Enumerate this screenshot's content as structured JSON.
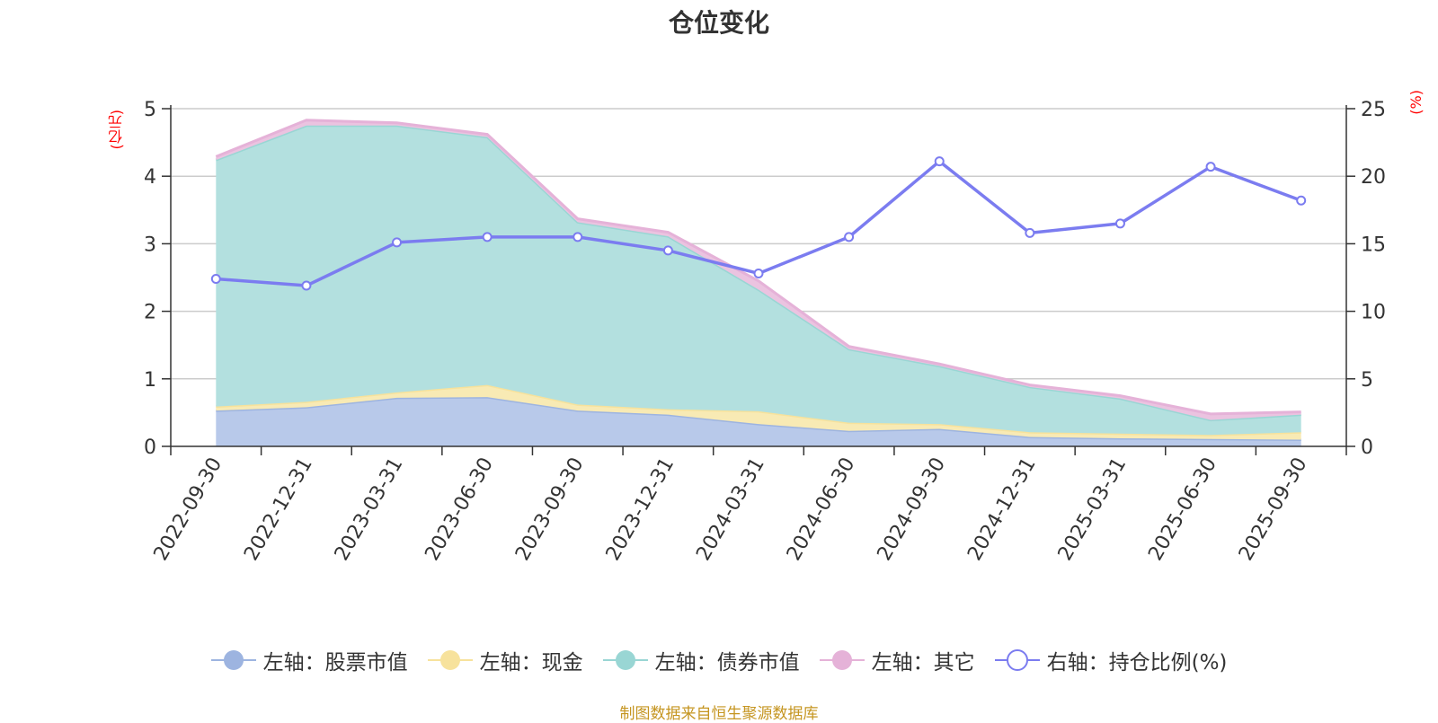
{
  "chart_data": {
    "type": "area",
    "title": "仓位变化",
    "y_left_unit": "(亿元)",
    "y_right_unit": "(%)",
    "y_left_ylim": [
      0,
      5
    ],
    "y_left_ticks": [
      "0",
      "1",
      "2",
      "3",
      "4",
      "5"
    ],
    "y_right_ylim": [
      0,
      25
    ],
    "y_right_ticks": [
      "0",
      "5",
      "10",
      "15",
      "20",
      "25"
    ],
    "categories": [
      "2022-09-30",
      "2022-12-31",
      "2023-03-31",
      "2023-06-30",
      "2023-09-30",
      "2023-12-31",
      "2024-03-31",
      "2024-06-30",
      "2024-09-30",
      "2024-12-31",
      "2025-03-31",
      "2025-06-30",
      "2025-09-30"
    ],
    "series": [
      {
        "name": "左轴：股票市值",
        "axis": "left",
        "kind": "stacked-area",
        "color": "#9db4e0",
        "fill": "#b8c9ea",
        "values": [
          0.53,
          0.58,
          0.72,
          0.73,
          0.53,
          0.47,
          0.33,
          0.23,
          0.26,
          0.14,
          0.12,
          0.11,
          0.1
        ]
      },
      {
        "name": "左轴：现金",
        "axis": "left",
        "kind": "stacked-area",
        "color": "#f7e29c",
        "fill": "#f8eab4",
        "values": [
          0.06,
          0.08,
          0.08,
          0.18,
          0.09,
          0.08,
          0.19,
          0.12,
          0.07,
          0.07,
          0.07,
          0.06,
          0.11
        ]
      },
      {
        "name": "左轴：债券市值",
        "axis": "left",
        "kind": "stacked-area",
        "color": "#99d6d4",
        "fill": "#b3e0df",
        "values": [
          3.65,
          4.09,
          3.95,
          3.67,
          2.7,
          2.56,
          1.8,
          1.09,
          0.86,
          0.67,
          0.52,
          0.22,
          0.26
        ]
      },
      {
        "name": "左轴：其它",
        "axis": "left",
        "kind": "stacked-area",
        "color": "#e5b2d8",
        "fill": "#ebc3e0",
        "values": [
          0.05,
          0.08,
          0.04,
          0.04,
          0.05,
          0.06,
          0.13,
          0.04,
          0.03,
          0.03,
          0.04,
          0.09,
          0.04
        ]
      },
      {
        "name": "右轴：持仓比例(%)",
        "axis": "right",
        "kind": "line",
        "color": "#7b7cf0",
        "values": [
          12.4,
          11.9,
          15.1,
          15.5,
          15.5,
          14.5,
          12.8,
          15.5,
          21.1,
          15.8,
          16.5,
          20.7,
          18.2
        ]
      }
    ],
    "legend_position": "bottom-center"
  },
  "source_note": "制图数据来自恒生聚源数据库"
}
